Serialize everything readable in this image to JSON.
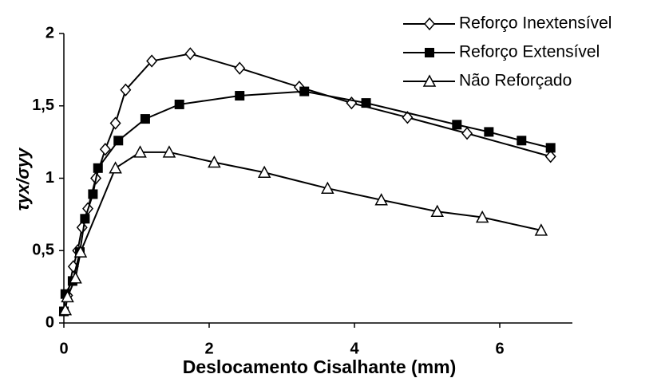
{
  "chart_data": {
    "type": "line",
    "xlabel": "Deslocamento Cisalhante (mm)",
    "ylabel": "τyx/σyy",
    "xlim": [
      0,
      7
    ],
    "xticks": [
      0,
      2,
      4,
      6
    ],
    "ylim": [
      0,
      2
    ],
    "yticks": [
      0,
      {
        "value": 0.5,
        "label": "0,5"
      },
      1,
      {
        "value": 1.5,
        "label": "1,5"
      },
      2
    ],
    "series": [
      {
        "name": "Reforço Inextensível",
        "color": "#000000",
        "marker": "diamond",
        "x": [
          0.05,
          0.13,
          0.19,
          0.25,
          0.33,
          0.44,
          0.57,
          0.71,
          0.85,
          1.21,
          1.74,
          2.42,
          3.24,
          3.96,
          4.73,
          5.55,
          6.7
        ],
        "values": [
          0.19,
          0.39,
          0.5,
          0.66,
          0.79,
          1.0,
          1.2,
          1.38,
          1.61,
          1.81,
          1.86,
          1.76,
          1.63,
          1.52,
          1.42,
          1.31,
          1.15
        ]
      },
      {
        "name": "Reforço Extensível",
        "color": "#000000",
        "marker": "square",
        "x": [
          0.0,
          0.02,
          0.12,
          0.22,
          0.29,
          0.4,
          0.47,
          0.75,
          1.12,
          1.59,
          2.42,
          3.31,
          4.16,
          5.41,
          5.85,
          6.3,
          6.7
        ],
        "values": [
          0.08,
          0.2,
          0.29,
          0.49,
          0.72,
          0.89,
          1.07,
          1.26,
          1.41,
          1.51,
          1.57,
          1.6,
          1.52,
          1.37,
          1.32,
          1.26,
          1.21
        ]
      },
      {
        "name": "Não Reforçado",
        "color": "#000000",
        "marker": "triangle",
        "x": [
          0.02,
          0.05,
          0.16,
          0.23,
          0.71,
          1.05,
          1.45,
          2.07,
          2.76,
          3.63,
          4.37,
          5.14,
          5.76,
          6.57
        ],
        "values": [
          0.09,
          0.18,
          0.31,
          0.49,
          1.07,
          1.18,
          1.18,
          1.11,
          1.04,
          0.93,
          0.85,
          0.77,
          0.73,
          0.64
        ]
      }
    ]
  }
}
